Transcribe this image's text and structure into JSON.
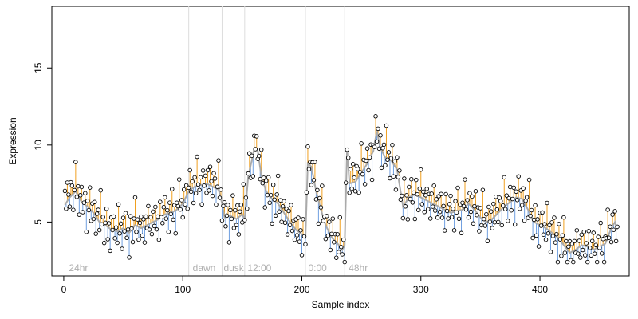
{
  "chart_data": {
    "type": "line",
    "title": "",
    "xlabel": "Sample index",
    "ylabel": "Expression",
    "xlim": [
      -10,
      475
    ],
    "ylim": [
      1.5,
      19
    ],
    "x_ticks": [
      0,
      100,
      200,
      300,
      400
    ],
    "y_ticks": [
      5,
      10,
      15
    ],
    "grid": false,
    "legend": "none",
    "colors": {
      "fit_line": "#aaaaaa",
      "residual_above": "#f0a020",
      "residual_below": "#6f9fe0",
      "points": "#000000",
      "dividers": "#dddddd",
      "period_labels": "#b0b0b0"
    },
    "period_dividers": [
      105,
      133,
      152,
      203,
      236
    ],
    "period_labels": [
      {
        "x": 3,
        "text": "24hr"
      },
      {
        "x": 107,
        "text": "dawn"
      },
      {
        "x": 133,
        "text": "dusk"
      },
      {
        "x": 153,
        "text": "12:00"
      },
      {
        "x": 204,
        "text": "0:00"
      },
      {
        "x": 238,
        "text": "48hr"
      }
    ],
    "fit_knots": [
      [
        0,
        6.0
      ],
      [
        5,
        6.6
      ],
      [
        10,
        7.0
      ],
      [
        15,
        6.3
      ],
      [
        20,
        6.0
      ],
      [
        25,
        5.6
      ],
      [
        30,
        5.0
      ],
      [
        35,
        4.8
      ],
      [
        40,
        4.5
      ],
      [
        45,
        4.4
      ],
      [
        50,
        4.6
      ],
      [
        55,
        4.3
      ],
      [
        60,
        4.8
      ],
      [
        65,
        4.6
      ],
      [
        70,
        4.8
      ],
      [
        75,
        5.0
      ],
      [
        80,
        5.2
      ],
      [
        85,
        5.5
      ],
      [
        90,
        5.6
      ],
      [
        95,
        5.8
      ],
      [
        100,
        6.2
      ],
      [
        105,
        7.0
      ],
      [
        110,
        7.3
      ],
      [
        115,
        7.4
      ],
      [
        120,
        7.5
      ],
      [
        125,
        7.3
      ],
      [
        130,
        7.1
      ],
      [
        133,
        6.2
      ],
      [
        135,
        5.3
      ],
      [
        140,
        5.4
      ],
      [
        145,
        5.2
      ],
      [
        150,
        5.5
      ],
      [
        152,
        5.2
      ],
      [
        155,
        8.0
      ],
      [
        158,
        9.0
      ],
      [
        160,
        9.8
      ],
      [
        163,
        9.6
      ],
      [
        166,
        8.0
      ],
      [
        170,
        7.0
      ],
      [
        175,
        6.5
      ],
      [
        180,
        6.2
      ],
      [
        185,
        5.6
      ],
      [
        190,
        5.0
      ],
      [
        195,
        4.5
      ],
      [
        200,
        4.2
      ],
      [
        203,
        4.0
      ],
      [
        205,
        8.8
      ],
      [
        208,
        8.6
      ],
      [
        212,
        7.0
      ],
      [
        216,
        5.8
      ],
      [
        220,
        4.8
      ],
      [
        225,
        4.0
      ],
      [
        230,
        3.6
      ],
      [
        234,
        3.2
      ],
      [
        236,
        3.5
      ],
      [
        238,
        9.8
      ],
      [
        240,
        7.5
      ],
      [
        245,
        7.6
      ],
      [
        250,
        8.2
      ],
      [
        255,
        8.8
      ],
      [
        260,
        9.6
      ],
      [
        263,
        10.9
      ],
      [
        266,
        9.8
      ],
      [
        270,
        9.2
      ],
      [
        275,
        9.0
      ],
      [
        280,
        8.4
      ],
      [
        285,
        6.0
      ],
      [
        290,
        6.6
      ],
      [
        295,
        6.8
      ],
      [
        300,
        6.6
      ],
      [
        305,
        6.4
      ],
      [
        310,
        6.2
      ],
      [
        315,
        6.0
      ],
      [
        320,
        5.8
      ],
      [
        325,
        5.6
      ],
      [
        330,
        5.7
      ],
      [
        335,
        5.8
      ],
      [
        340,
        6.2
      ],
      [
        345,
        5.8
      ],
      [
        350,
        5.3
      ],
      [
        355,
        5.0
      ],
      [
        360,
        5.2
      ],
      [
        365,
        5.6
      ],
      [
        370,
        6.0
      ],
      [
        375,
        6.3
      ],
      [
        380,
        6.6
      ],
      [
        385,
        6.5
      ],
      [
        390,
        5.8
      ],
      [
        395,
        5.0
      ],
      [
        400,
        4.8
      ],
      [
        405,
        4.6
      ],
      [
        410,
        4.3
      ],
      [
        415,
        4.0
      ],
      [
        420,
        3.5
      ],
      [
        425,
        3.0
      ],
      [
        430,
        3.2
      ],
      [
        435,
        3.5
      ],
      [
        440,
        3.4
      ],
      [
        445,
        3.2
      ],
      [
        450,
        3.4
      ],
      [
        455,
        3.6
      ],
      [
        460,
        4.6
      ],
      [
        463,
        5.0
      ],
      [
        466,
        4.2
      ]
    ],
    "points": {
      "x_start": 1,
      "x_end": 465,
      "deviations": [
        0.9,
        -0.5,
        1.6,
        0.3,
        -0.8,
        1.2,
        0.6,
        -1.4,
        0.2,
        1.9,
        -0.3,
        0.8,
        -1.1,
        0.4,
        1.3,
        -0.6,
        0.1,
        1.0,
        -1.7,
        0.5,
        -0.2,
        1.4,
        -0.9,
        0.7,
        -0.4,
        1.1,
        -1.5,
        0.3,
        0.9,
        -0.7,
        2.1,
        -0.1,
        0.6,
        -1.2,
        0.2,
        1.5,
        -0.8,
        0.4,
        -1.9,
        0.8,
        0.0,
        1.2,
        -0.5,
        0.3,
        -1.0,
        1.7,
        -0.3,
        0.5,
        -1.3,
        0.9,
        -0.2,
        1.1,
        -0.6,
        0.2,
        -1.6,
        1.3,
        0.1,
        -0.9,
        0.7,
        2.4,
        -0.4,
        0.6,
        -1.1,
        0.3,
        1.0,
        -0.7,
        0.5,
        -1.4,
        0.8,
        -0.2,
        1.6,
        -0.5,
        0.4,
        -1.0,
        0.9,
        -0.3,
        1.2,
        -0.8,
        0.2,
        -1.8,
        1.4,
        0.0,
        -0.6,
        0.7,
        1.1,
        -0.4,
        0.3,
        -1.2,
        0.9,
        -0.1,
        1.5,
        -0.7,
        0.5,
        -1.5,
        0.6,
        0.2,
        1.8,
        -0.3,
        0.4,
        -0.9,
        1.0,
        -0.5,
        0.7,
        -1.3,
        0.3,
        1.3,
        -0.2,
        0.6,
        -1.0,
        0.8,
        -0.6,
        1.9,
        0.1,
        -0.4,
        0.5,
        -1.7,
        1.2,
        -0.1,
        0.7,
        -0.8
      ]
    }
  }
}
